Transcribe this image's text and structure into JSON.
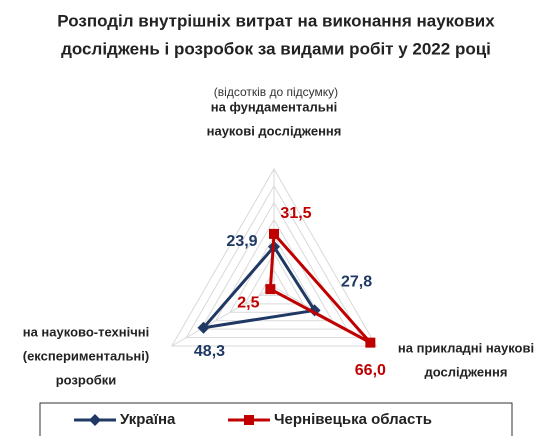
{
  "chart_data": {
    "type": "radar",
    "title": [
      "Розподіл внутрішніх витрат на виконання наукових",
      "досліджень і розробок за видами робіт у 2022 році"
    ],
    "subtitle": "(відсотків до підсумку)",
    "categories": [
      [
        "на фундаментальні",
        "наукові дослідження"
      ],
      [
        "на прикладні наукові",
        "дослідження"
      ],
      [
        "на науково-технічні",
        "(експериментальні)",
        "розробки"
      ]
    ],
    "series": [
      {
        "name": "Україна",
        "color": "#1f3864",
        "values": [
          23.9,
          27.8,
          48.3
        ],
        "value_labels": [
          "23,9",
          "27,8",
          "48,3"
        ]
      },
      {
        "name": "Чернівецька область",
        "color": "#c00000",
        "values": [
          31.5,
          66.0,
          2.5
        ],
        "value_labels": [
          "31,5",
          "66,0",
          "2,5"
        ]
      }
    ],
    "ylim": [
      0,
      70
    ],
    "yticks": [
      0,
      10,
      20,
      30,
      40,
      50,
      60,
      70
    ],
    "grid": true,
    "legend": "bottom"
  }
}
